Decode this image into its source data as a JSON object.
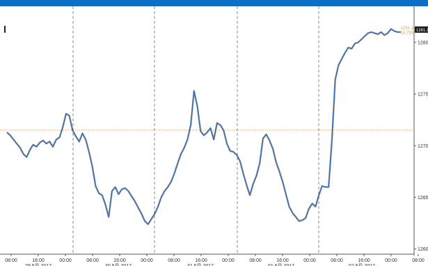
{
  "header": {
    "accent_color": "#0a6fc2"
  },
  "chart_data": {
    "type": "line",
    "title": "",
    "xlabel": "",
    "ylabel": "",
    "ylim": [
      1259.5,
      1283.5
    ],
    "yticks": [
      1260,
      1265,
      1270,
      1275,
      1280
    ],
    "ytick_labels": [
      "1260",
      "1265",
      "1270",
      "1275",
      "1280"
    ],
    "reference_line": {
      "value": 1271.5,
      "color": "#e8a23a"
    },
    "grid": "vertical dashed session separators",
    "series": [
      {
        "color": "#2d6fc4",
        "x": [
          0,
          2,
          4,
          6,
          8,
          10,
          12,
          14,
          16,
          18,
          20,
          22,
          24,
          26,
          28,
          30,
          32,
          34,
          36,
          38,
          40,
          42,
          44,
          46,
          48,
          50,
          52,
          54,
          56,
          58,
          60,
          62,
          64,
          66,
          68,
          70,
          72,
          74,
          76,
          78,
          80,
          82,
          84,
          86,
          88,
          90,
          92,
          94,
          96,
          98,
          100,
          102,
          104,
          106,
          108,
          110,
          112,
          114,
          116,
          118,
          120,
          122,
          124,
          126,
          128,
          130,
          132,
          134,
          136,
          138,
          140,
          142,
          144,
          146,
          148,
          150,
          152,
          154,
          156,
          158,
          160,
          162,
          164,
          166,
          168,
          170,
          172,
          174,
          176,
          178,
          180,
          182,
          184,
          186,
          188,
          190,
          192,
          194,
          196,
          198,
          200,
          202,
          204,
          206,
          208,
          210,
          212,
          214,
          216,
          218,
          220,
          222,
          224,
          226,
          228,
          230,
          232,
          234,
          236,
          238,
          240
        ],
        "values": [
          1271.3,
          1271.0,
          1270.6,
          1270.2,
          1269.8,
          1269.2,
          1268.9,
          1269.6,
          1270.1,
          1269.9,
          1270.3,
          1270.5,
          1270.2,
          1270.4,
          1269.9,
          1270.6,
          1270.8,
          1271.8,
          1273.1,
          1272.9,
          1271.5,
          1270.9,
          1270.4,
          1271.2,
          1270.6,
          1269.4,
          1268.0,
          1266.1,
          1265.4,
          1265.2,
          1264.3,
          1263.1,
          1265.6,
          1266.0,
          1265.3,
          1265.8,
          1265.9,
          1265.6,
          1265.1,
          1264.6,
          1264.0,
          1263.4,
          1262.7,
          1262.4,
          1262.9,
          1263.4,
          1264.1,
          1265.0,
          1265.6,
          1266.0,
          1266.5,
          1267.3,
          1268.3,
          1269.2,
          1269.8,
          1270.6,
          1272.0,
          1275.3,
          1273.8,
          1271.4,
          1271.0,
          1271.3,
          1271.7,
          1270.6,
          1272.2,
          1272.0,
          1271.5,
          1270.2,
          1269.5,
          1269.4,
          1269.1,
          1268.5,
          1267.3,
          1266.2,
          1265.2,
          1266.3,
          1267.1,
          1268.3,
          1270.7,
          1271.1,
          1270.5,
          1269.7,
          1268.4,
          1267.5,
          1266.5,
          1265.3,
          1264.1,
          1263.5,
          1263.1,
          1262.7,
          1262.8,
          1263.0,
          1263.9,
          1264.4,
          1264.1,
          1265.2,
          1266.1,
          1266.0,
          1266.0,
          1270.5,
          1276.4,
          1277.8,
          1278.4,
          1279.0,
          1279.5,
          1279.4,
          1279.9,
          1280.0,
          1280.3,
          1280.6,
          1280.9,
          1281.0,
          1280.9,
          1280.8,
          1281.0,
          1280.7,
          1280.9,
          1281.3,
          1281.1,
          1281.0,
          1281.0
        ]
      }
    ],
    "x_tick_labels": [
      "08:00",
      "16:00",
      "00:00",
      "08:00",
      "16:00",
      "00:00",
      "08:00",
      "16:00",
      "00:00",
      "08:00",
      "16:00",
      "00:00",
      "08:00",
      "16:00",
      "00:00",
      "08:00",
      "16:00",
      "00:00"
    ],
    "x_date_labels": [
      "29.5月 2017",
      "30.5月 2017",
      "31.5月 2017",
      "01.6月 2017",
      "02.6月 2017"
    ],
    "last_value_labels": [
      {
        "text": "1281.1",
        "color": "#ffffff",
        "bg": "#1a1a1a"
      },
      {
        "text": "1281.1",
        "color": "#e8a23a",
        "bg": "#ffffff"
      },
      {
        "text": "15,799",
        "color": "#e8a23a",
        "bg": "#ffffff"
      }
    ]
  }
}
